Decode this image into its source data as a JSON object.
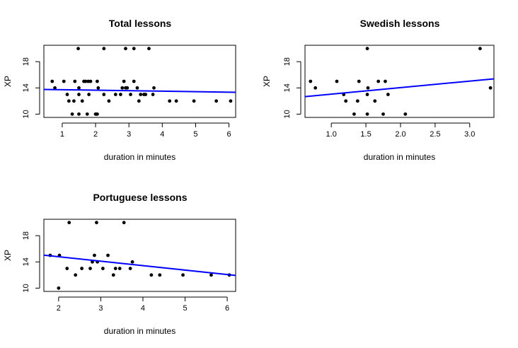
{
  "chart_data": [
    {
      "id": "total",
      "type": "scatter",
      "title": "Total lessons",
      "xlabel": "duration in minutes",
      "ylabel": "XP",
      "xlim": [
        0.45,
        6.2
      ],
      "ylim": [
        9.5,
        20.5
      ],
      "xticks": [
        1,
        2,
        3,
        4,
        5,
        6
      ],
      "yticks": [
        10,
        14,
        18
      ],
      "grid": false,
      "legend": "none",
      "point_color": "#000000",
      "fit_color": "#0000ff",
      "points": [
        [
          0.7,
          15
        ],
        [
          0.78,
          14
        ],
        [
          1.05,
          15
        ],
        [
          1.15,
          13
        ],
        [
          1.2,
          12
        ],
        [
          1.3,
          10
        ],
        [
          1.35,
          12
        ],
        [
          1.38,
          15
        ],
        [
          1.48,
          20
        ],
        [
          1.5,
          14
        ],
        [
          1.5,
          13
        ],
        [
          1.5,
          10
        ],
        [
          1.6,
          12
        ],
        [
          1.65,
          15
        ],
        [
          1.7,
          15
        ],
        [
          1.75,
          10
        ],
        [
          1.78,
          15
        ],
        [
          1.8,
          13
        ],
        [
          1.85,
          15
        ],
        [
          2.0,
          10
        ],
        [
          2.03,
          10
        ],
        [
          2.05,
          10
        ],
        [
          2.05,
          15
        ],
        [
          2.08,
          14
        ],
        [
          2.25,
          20
        ],
        [
          2.25,
          13
        ],
        [
          2.4,
          12
        ],
        [
          2.6,
          13
        ],
        [
          2.75,
          13
        ],
        [
          2.8,
          14
        ],
        [
          2.85,
          15
        ],
        [
          2.9,
          14
        ],
        [
          2.9,
          20
        ],
        [
          2.95,
          14
        ],
        [
          3.05,
          13
        ],
        [
          3.15,
          15
        ],
        [
          3.15,
          20
        ],
        [
          3.25,
          14
        ],
        [
          3.3,
          12
        ],
        [
          3.35,
          13
        ],
        [
          3.45,
          13
        ],
        [
          3.5,
          13
        ],
        [
          3.6,
          20
        ],
        [
          3.72,
          13
        ],
        [
          3.75,
          14
        ],
        [
          4.22,
          12
        ],
        [
          4.42,
          12
        ],
        [
          4.95,
          12
        ],
        [
          5.62,
          12
        ],
        [
          6.05,
          12
        ]
      ],
      "fit": {
        "intercept": 13.8,
        "slope": -0.075
      }
    },
    {
      "id": "swedish",
      "type": "scatter",
      "title": "Swedish lessons",
      "xlabel": "duration in minutes",
      "ylabel": "XP",
      "xlim": [
        0.62,
        3.35
      ],
      "ylim": [
        9.5,
        20.5
      ],
      "xticks": [
        1.0,
        1.5,
        2.0,
        2.5,
        3.0
      ],
      "xtick_labels": [
        "1.0",
        "1.5",
        "2.0",
        "2.5",
        "3.0"
      ],
      "yticks": [
        10,
        14,
        18
      ],
      "grid": false,
      "legend": "none",
      "point_color": "#000000",
      "fit_color": "#0000ff",
      "points": [
        [
          0.7,
          15
        ],
        [
          0.77,
          14
        ],
        [
          1.08,
          15
        ],
        [
          1.18,
          13
        ],
        [
          1.21,
          12
        ],
        [
          1.33,
          10
        ],
        [
          1.38,
          12
        ],
        [
          1.4,
          15
        ],
        [
          1.52,
          20
        ],
        [
          1.52,
          13
        ],
        [
          1.52,
          10
        ],
        [
          1.53,
          14
        ],
        [
          1.63,
          12
        ],
        [
          1.68,
          15
        ],
        [
          1.75,
          10
        ],
        [
          1.78,
          15
        ],
        [
          1.82,
          13
        ],
        [
          2.07,
          10
        ],
        [
          3.15,
          20
        ],
        [
          3.3,
          14
        ]
      ],
      "fit": {
        "intercept": 12.05,
        "slope": 0.995
      }
    },
    {
      "id": "portuguese",
      "type": "scatter",
      "title": "Portuguese lessons",
      "xlabel": "duration in minutes",
      "ylabel": "XP",
      "xlim": [
        1.65,
        6.2
      ],
      "ylim": [
        9.5,
        20.5
      ],
      "xticks": [
        2,
        3,
        4,
        5,
        6
      ],
      "yticks": [
        10,
        14,
        18
      ],
      "grid": false,
      "legend": "none",
      "point_color": "#000000",
      "fit_color": "#0000ff",
      "points": [
        [
          1.8,
          15
        ],
        [
          2.02,
          15
        ],
        [
          2.0,
          10
        ],
        [
          2.2,
          13
        ],
        [
          2.25,
          20
        ],
        [
          2.4,
          12
        ],
        [
          2.55,
          13
        ],
        [
          2.75,
          13
        ],
        [
          2.8,
          14
        ],
        [
          2.85,
          15
        ],
        [
          2.9,
          20
        ],
        [
          2.92,
          14
        ],
        [
          3.05,
          13
        ],
        [
          3.17,
          15
        ],
        [
          3.3,
          12
        ],
        [
          3.35,
          13
        ],
        [
          3.45,
          13
        ],
        [
          3.55,
          20
        ],
        [
          3.7,
          13
        ],
        [
          3.75,
          14
        ],
        [
          4.2,
          12
        ],
        [
          4.4,
          12
        ],
        [
          4.95,
          12
        ],
        [
          5.62,
          12
        ],
        [
          6.05,
          12
        ]
      ],
      "fit": {
        "intercept": 16.15,
        "slope": -0.68
      }
    }
  ]
}
